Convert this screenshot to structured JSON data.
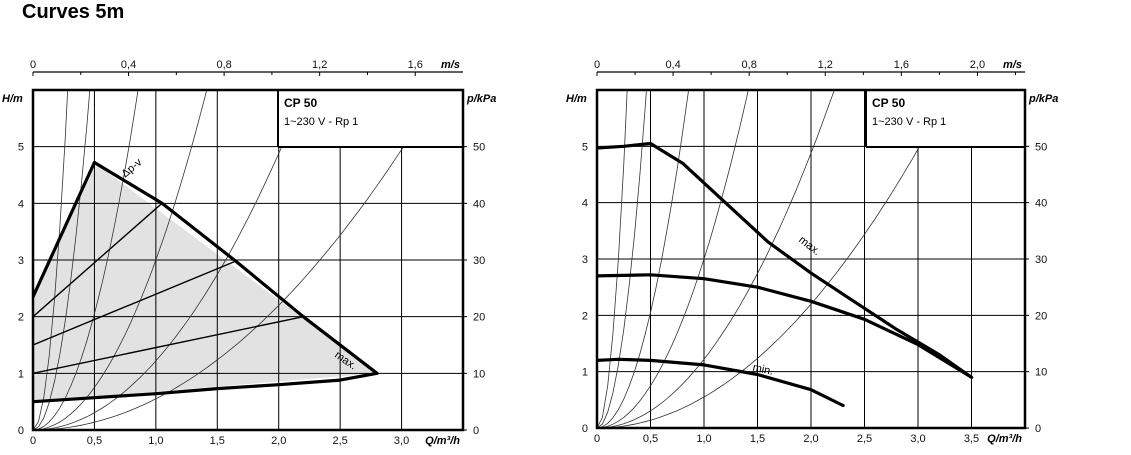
{
  "page": {
    "title": "Curves 5m"
  },
  "chart_data": [
    {
      "type": "line",
      "model": "CP 50",
      "variant": "1~230 V - Rp 1",
      "xlabel": "Q/m³/h",
      "ylabel": "H/m",
      "y2label": "p/kPa",
      "x2label": "m/s",
      "xlim": [
        0,
        3.5
      ],
      "ylim": [
        0,
        6
      ],
      "y2lim": [
        0,
        60
      ],
      "x2lim": [
        0,
        1.8
      ],
      "x_ticks": [
        "0",
        "0,5",
        "1,0",
        "1,5",
        "2,0",
        "2,5",
        "3,0"
      ],
      "x_tick_values": [
        0,
        0.5,
        1.0,
        1.5,
        2.0,
        2.5,
        3.0
      ],
      "y_ticks": [
        "0",
        "1",
        "2",
        "3",
        "4",
        "5"
      ],
      "y_tick_values": [
        0,
        1,
        2,
        3,
        4,
        5
      ],
      "y2_ticks": [
        "0",
        "10",
        "20",
        "30",
        "40",
        "50"
      ],
      "y2_tick_values": [
        0,
        10,
        20,
        30,
        40,
        50
      ],
      "x2_ticks": [
        "0",
        "0,4",
        "0,8",
        "1,2",
        "1,6"
      ],
      "x2_tick_values": [
        0,
        0.4,
        0.8,
        1.2,
        1.6
      ],
      "grid": true,
      "shaded_region": [
        [
          0,
          0.5
        ],
        [
          0,
          2.35
        ],
        [
          0.5,
          4.72
        ],
        [
          2.8,
          1.0
        ],
        [
          0,
          0.5
        ]
      ],
      "series": [
        {
          "name": "Δp-v",
          "label_at": [
            0.75,
            4.45
          ],
          "label_angle": -40,
          "width": 3.2,
          "points": [
            [
              0,
              2.35
            ],
            [
              0.5,
              4.72
            ]
          ]
        },
        {
          "name": "max.",
          "label_at": [
            2.45,
            1.3
          ],
          "label_angle": 35,
          "width": 3.2,
          "points": [
            [
              0.5,
              4.72
            ],
            [
              1.05,
              4.0
            ],
            [
              1.65,
              2.98
            ],
            [
              2.2,
              2.0
            ],
            [
              2.8,
              1.0
            ]
          ]
        },
        {
          "name": "",
          "width": 3.2,
          "points": [
            [
              0,
              0.5
            ],
            [
              0.5,
              0.57
            ],
            [
              1.0,
              0.64
            ],
            [
              1.5,
              0.73
            ],
            [
              2.0,
              0.8
            ],
            [
              2.5,
              0.88
            ],
            [
              2.8,
              1.0
            ]
          ]
        },
        {
          "name": "",
          "width": 1.4,
          "points": [
            [
              0,
              2.0
            ],
            [
              1.05,
              4.0
            ]
          ]
        },
        {
          "name": "",
          "width": 1.4,
          "points": [
            [
              0,
              1.5
            ],
            [
              1.65,
              2.98
            ]
          ]
        },
        {
          "name": "",
          "width": 1.4,
          "points": [
            [
              0,
              1.0
            ],
            [
              2.2,
              2.0
            ]
          ]
        }
      ],
      "system_curves": [
        75,
        28,
        8.2,
        3.0,
        1.22,
        0.55
      ]
    },
    {
      "type": "line",
      "model": "CP 50",
      "variant": "1~230 V - Rp 1",
      "xlabel": "Q/m³/h",
      "ylabel": "H/m",
      "y2label": "p/kPa",
      "x2label": "m/s",
      "xlim": [
        0,
        4.0
      ],
      "ylim": [
        0,
        6
      ],
      "y2lim": [
        0,
        60
      ],
      "x2lim": [
        0,
        2.25
      ],
      "x_ticks": [
        "0",
        "0,5",
        "1,0",
        "1,5",
        "2,0",
        "2,5",
        "3,0",
        "3,5"
      ],
      "x_tick_values": [
        0,
        0.5,
        1.0,
        1.5,
        2.0,
        2.5,
        3.0,
        3.5
      ],
      "y_ticks": [
        "0",
        "1",
        "2",
        "3",
        "4",
        "5"
      ],
      "y_tick_values": [
        0,
        1,
        2,
        3,
        4,
        5
      ],
      "y2_ticks": [
        "0",
        "10",
        "20",
        "30",
        "40",
        "50"
      ],
      "y2_tick_values": [
        0,
        10,
        20,
        30,
        40,
        50
      ],
      "x2_ticks": [
        "0",
        "0,4",
        "0,8",
        "1,2",
        "1,6",
        "2,0"
      ],
      "x2_tick_values": [
        0,
        0.4,
        0.8,
        1.2,
        1.6,
        2.0
      ],
      "grid": true,
      "series": [
        {
          "name": "max.",
          "label_at": [
            1.88,
            3.32
          ],
          "label_angle": 38,
          "width": 3.2,
          "points": [
            [
              0,
              4.97
            ],
            [
              0.25,
              5.0
            ],
            [
              0.5,
              5.05
            ],
            [
              0.8,
              4.7
            ],
            [
              1.2,
              4.0
            ],
            [
              1.6,
              3.3
            ],
            [
              2.0,
              2.75
            ],
            [
              2.4,
              2.25
            ],
            [
              2.8,
              1.75
            ],
            [
              3.2,
              1.3
            ],
            [
              3.5,
              0.9
            ]
          ]
        },
        {
          "name": "",
          "width": 3.2,
          "points": [
            [
              0,
              2.7
            ],
            [
              0.5,
              2.72
            ],
            [
              1.0,
              2.65
            ],
            [
              1.5,
              2.5
            ],
            [
              2.0,
              2.25
            ],
            [
              2.5,
              1.93
            ],
            [
              3.0,
              1.48
            ],
            [
              3.5,
              0.9
            ]
          ]
        },
        {
          "name": "min.",
          "label_at": [
            1.45,
            1.02
          ],
          "label_angle": 12,
          "width": 3.2,
          "points": [
            [
              0,
              1.2
            ],
            [
              0.2,
              1.22
            ],
            [
              0.5,
              1.2
            ],
            [
              1.0,
              1.12
            ],
            [
              1.5,
              0.95
            ],
            [
              2.0,
              0.68
            ],
            [
              2.3,
              0.4
            ]
          ]
        }
      ],
      "system_curves": [
        75,
        28,
        8.2,
        3.0,
        1.22,
        0.55
      ]
    }
  ]
}
